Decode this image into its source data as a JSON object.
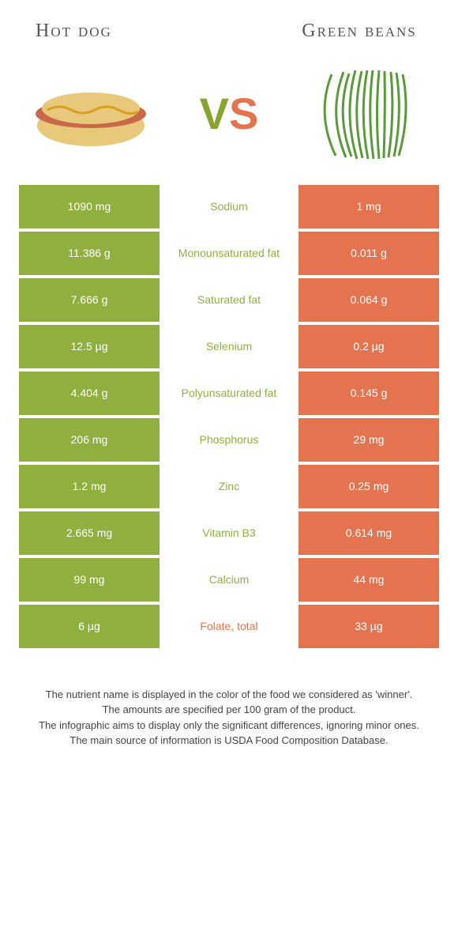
{
  "colors": {
    "green": "#8fb03e",
    "orange": "#e4744f",
    "white": "#ffffff"
  },
  "foods": {
    "left": {
      "title": "Hot dog"
    },
    "right": {
      "title": "Green beans"
    }
  },
  "vs": "VS",
  "rows": [
    {
      "left": "1090 mg",
      "nutrient": "Sodium",
      "right": "1 mg",
      "winner": "left"
    },
    {
      "left": "11.386 g",
      "nutrient": "Monounsaturated fat",
      "right": "0.011 g",
      "winner": "left"
    },
    {
      "left": "7.666 g",
      "nutrient": "Saturated fat",
      "right": "0.064 g",
      "winner": "left"
    },
    {
      "left": "12.5 µg",
      "nutrient": "Selenium",
      "right": "0.2 µg",
      "winner": "left"
    },
    {
      "left": "4.404 g",
      "nutrient": "Polyunsaturated fat",
      "right": "0.145 g",
      "winner": "left"
    },
    {
      "left": "206 mg",
      "nutrient": "Phosphorus",
      "right": "29 mg",
      "winner": "left"
    },
    {
      "left": "1.2 mg",
      "nutrient": "Zinc",
      "right": "0.25 mg",
      "winner": "left"
    },
    {
      "left": "2.665 mg",
      "nutrient": "Vitamin B3",
      "right": "0.614 mg",
      "winner": "left"
    },
    {
      "left": "99 mg",
      "nutrient": "Calcium",
      "right": "44 mg",
      "winner": "left"
    },
    {
      "left": "6 µg",
      "nutrient": "Folate, total",
      "right": "33 µg",
      "winner": "right"
    }
  ],
  "footer": [
    "The nutrient name is displayed in the color of the food we considered as 'winner'.",
    "The amounts are specified per 100 gram of the product.",
    "The infographic aims to display only the significant differences, ignoring minor ones.",
    "The main source of information is USDA Food Composition Database."
  ]
}
